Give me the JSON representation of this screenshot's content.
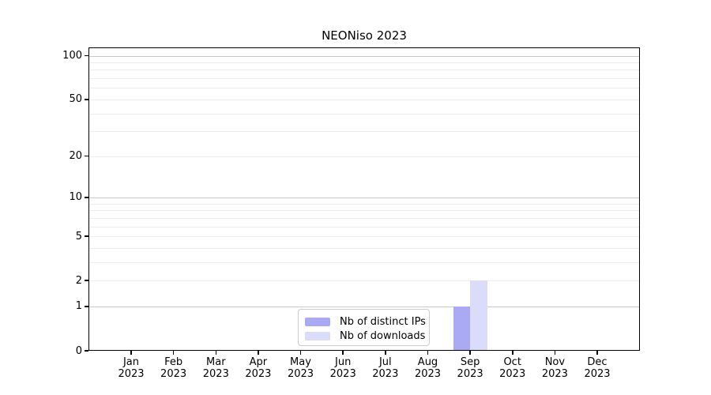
{
  "chart_data": {
    "type": "bar",
    "title": "NEONiso 2023",
    "categories": [
      "Jan",
      "Feb",
      "Mar",
      "Apr",
      "May",
      "Jun",
      "Jul",
      "Aug",
      "Sep",
      "Oct",
      "Nov",
      "Dec"
    ],
    "category_year": "2023",
    "series": [
      {
        "name": "Nb of distinct IPs",
        "color": "#aaaaf4",
        "values": [
          0,
          0,
          0,
          0,
          0,
          0,
          0,
          0,
          1,
          0,
          0,
          0
        ]
      },
      {
        "name": "Nb of downloads",
        "color": "#dbdbfa",
        "values": [
          0,
          0,
          0,
          0,
          0,
          0,
          0,
          0,
          2,
          0,
          0,
          0
        ]
      }
    ],
    "y_axis": {
      "scale": "log1p",
      "tick_labels": [
        0,
        1,
        2,
        5,
        10,
        20,
        50,
        100
      ],
      "major_gridlines": [
        1,
        10,
        100
      ],
      "minor_gridlines": [
        2,
        3,
        4,
        5,
        6,
        7,
        8,
        9,
        20,
        30,
        40,
        50,
        60,
        70,
        80,
        90
      ],
      "max": 114
    },
    "legend_entries": [
      "Nb of distinct IPs",
      "Nb of downloads"
    ],
    "legend_position": "lower center (inside plot)",
    "grid": "on"
  },
  "colors": {
    "spine": "#000000",
    "major_grid": "#c9c9c9",
    "minor_grid": "#ededed",
    "legend_border": "#cccccc",
    "background": "#ffffff",
    "text": "#000000"
  }
}
